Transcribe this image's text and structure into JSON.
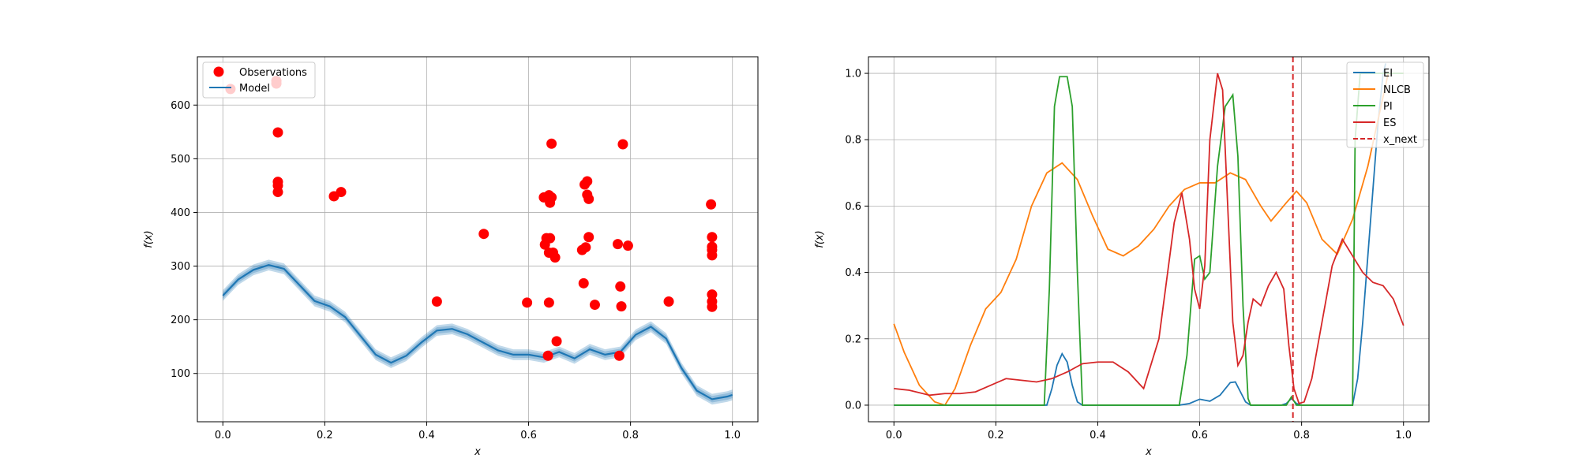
{
  "chart_data": [
    {
      "type": "scatter",
      "xlabel": "x",
      "ylabel": "f(x)",
      "xlim": [
        -0.05,
        1.05
      ],
      "ylim": [
        10,
        690
      ],
      "xticks": [
        "0.0",
        "0.2",
        "0.4",
        "0.6",
        "0.8",
        "1.0"
      ],
      "yticks": [
        "100",
        "200",
        "300",
        "400",
        "500",
        "600"
      ],
      "grid": true,
      "legend": "top-left",
      "legend_labels": {
        "observations": "Observations",
        "model": "Model"
      },
      "colors": {
        "observations": "#ff0000",
        "model": "#1f77b4",
        "band": "#1f77b4"
      },
      "series": [
        {
          "name": "Observations",
          "kind": "scatter",
          "points": [
            [
              0.015,
              630
            ],
            [
              0.105,
              645
            ],
            [
              0.105,
              640
            ],
            [
              0.108,
              549
            ],
            [
              0.108,
              457
            ],
            [
              0.108,
              450
            ],
            [
              0.108,
              438
            ],
            [
              0.218,
              430
            ],
            [
              0.232,
              438
            ],
            [
              0.42,
              234
            ],
            [
              0.512,
              360
            ],
            [
              0.597,
              232
            ],
            [
              0.63,
              428
            ],
            [
              0.635,
              352
            ],
            [
              0.632,
              340
            ],
            [
              0.638,
              133
            ],
            [
              0.642,
              352
            ],
            [
              0.64,
              432
            ],
            [
              0.642,
              418
            ],
            [
              0.645,
              428
            ],
            [
              0.645,
              528
            ],
            [
              0.64,
              325
            ],
            [
              0.64,
              232
            ],
            [
              0.648,
              325
            ],
            [
              0.652,
              316
            ],
            [
              0.655,
              160
            ],
            [
              0.705,
              330
            ],
            [
              0.708,
              268
            ],
            [
              0.71,
              452
            ],
            [
              0.712,
              335
            ],
            [
              0.715,
              458
            ],
            [
              0.715,
              433
            ],
            [
              0.718,
              425
            ],
            [
              0.718,
              354
            ],
            [
              0.73,
              228
            ],
            [
              0.775,
              341
            ],
            [
              0.778,
              133
            ],
            [
              0.78,
              262
            ],
            [
              0.782,
              225
            ],
            [
              0.785,
              527
            ],
            [
              0.795,
              338
            ],
            [
              0.875,
              234
            ],
            [
              0.958,
              415
            ],
            [
              0.96,
              354
            ],
            [
              0.96,
              336
            ],
            [
              0.96,
              330
            ],
            [
              0.96,
              320
            ],
            [
              0.96,
              247
            ],
            [
              0.96,
              234
            ],
            [
              0.96,
              224
            ]
          ]
        },
        {
          "name": "Model",
          "kind": "line",
          "x": [
            0.0,
            0.03,
            0.06,
            0.09,
            0.12,
            0.15,
            0.18,
            0.21,
            0.24,
            0.27,
            0.3,
            0.33,
            0.36,
            0.39,
            0.42,
            0.45,
            0.48,
            0.51,
            0.54,
            0.57,
            0.6,
            0.63,
            0.66,
            0.69,
            0.72,
            0.75,
            0.78,
            0.81,
            0.84,
            0.87,
            0.9,
            0.93,
            0.96,
            0.99,
            1.0
          ],
          "y": [
            245,
            275,
            293,
            302,
            295,
            265,
            235,
            225,
            205,
            170,
            135,
            120,
            133,
            158,
            180,
            183,
            173,
            158,
            143,
            135,
            135,
            130,
            140,
            128,
            145,
            135,
            140,
            172,
            187,
            165,
            110,
            68,
            52,
            57,
            60
          ],
          "band": [
            10,
            10,
            10,
            10,
            10,
            10,
            10,
            10,
            10,
            10,
            10,
            10,
            10,
            10,
            10,
            10,
            10,
            10,
            10,
            10,
            10,
            10,
            10,
            10,
            10,
            10,
            10,
            10,
            10,
            10,
            10,
            10,
            10,
            10,
            10
          ]
        }
      ]
    },
    {
      "type": "line",
      "xlabel": "x",
      "ylabel": "f(x)",
      "xlim": [
        -0.05,
        1.05
      ],
      "ylim": [
        -0.05,
        1.05
      ],
      "xticks": [
        "0.0",
        "0.2",
        "0.4",
        "0.6",
        "0.8",
        "1.0"
      ],
      "yticks": [
        "0.0",
        "0.2",
        "0.4",
        "0.6",
        "0.8",
        "1.0"
      ],
      "grid": true,
      "legend": "top-right",
      "x_next": 0.783,
      "series": [
        {
          "name": "EI",
          "color": "#1f77b4",
          "x": [
            0.0,
            0.3,
            0.31,
            0.32,
            0.33,
            0.34,
            0.35,
            0.36,
            0.37,
            0.56,
            0.58,
            0.6,
            0.62,
            0.64,
            0.66,
            0.67,
            0.68,
            0.69,
            0.7,
            0.76,
            0.77,
            0.78,
            0.79,
            0.8,
            0.9,
            0.91,
            0.92,
            0.93,
            0.94,
            0.95,
            0.96,
            0.965
          ],
          "y": [
            0.0,
            0.0,
            0.05,
            0.12,
            0.155,
            0.13,
            0.06,
            0.01,
            0.0,
            0.0,
            0.005,
            0.018,
            0.012,
            0.03,
            0.068,
            0.07,
            0.04,
            0.01,
            0.0,
            0.0,
            0.005,
            0.02,
            0.005,
            0.0,
            0.0,
            0.08,
            0.25,
            0.45,
            0.65,
            0.85,
            1.0,
            1.03
          ]
        },
        {
          "name": "NLCB",
          "color": "#ff7f0e",
          "x": [
            0.0,
            0.02,
            0.05,
            0.08,
            0.1,
            0.12,
            0.15,
            0.18,
            0.21,
            0.24,
            0.27,
            0.3,
            0.33,
            0.36,
            0.39,
            0.42,
            0.45,
            0.48,
            0.51,
            0.54,
            0.57,
            0.6,
            0.63,
            0.66,
            0.69,
            0.72,
            0.74,
            0.77,
            0.79,
            0.81,
            0.84,
            0.87,
            0.9,
            0.93,
            0.95,
            0.97,
            1.0
          ],
          "y": [
            0.245,
            0.16,
            0.06,
            0.01,
            0.0,
            0.05,
            0.18,
            0.29,
            0.34,
            0.44,
            0.6,
            0.7,
            0.73,
            0.68,
            0.57,
            0.47,
            0.45,
            0.48,
            0.53,
            0.6,
            0.65,
            0.67,
            0.67,
            0.7,
            0.68,
            0.6,
            0.555,
            0.61,
            0.645,
            0.61,
            0.5,
            0.455,
            0.56,
            0.72,
            0.86,
            1.0,
            1.0
          ]
        },
        {
          "name": "PI",
          "color": "#2ca02c",
          "x": [
            0.0,
            0.295,
            0.305,
            0.315,
            0.325,
            0.34,
            0.35,
            0.36,
            0.37,
            0.56,
            0.575,
            0.59,
            0.6,
            0.61,
            0.62,
            0.635,
            0.65,
            0.665,
            0.675,
            0.685,
            0.695,
            0.7,
            0.77,
            0.78,
            0.79,
            0.9,
            0.905,
            0.915,
            1.0
          ],
          "y": [
            0.0,
            0.0,
            0.35,
            0.9,
            0.99,
            0.99,
            0.9,
            0.4,
            0.0,
            0.0,
            0.15,
            0.44,
            0.45,
            0.38,
            0.4,
            0.72,
            0.9,
            0.935,
            0.75,
            0.3,
            0.02,
            0.0,
            0.0,
            0.025,
            0.0,
            0.0,
            0.8,
            1.0,
            1.0
          ]
        },
        {
          "name": "ES",
          "color": "#d62728",
          "x": [
            0.0,
            0.03,
            0.07,
            0.1,
            0.13,
            0.16,
            0.19,
            0.22,
            0.25,
            0.28,
            0.31,
            0.34,
            0.37,
            0.4,
            0.43,
            0.46,
            0.49,
            0.52,
            0.55,
            0.565,
            0.58,
            0.59,
            0.6,
            0.61,
            0.62,
            0.635,
            0.645,
            0.655,
            0.665,
            0.675,
            0.685,
            0.695,
            0.705,
            0.72,
            0.735,
            0.75,
            0.765,
            0.775,
            0.785,
            0.795,
            0.805,
            0.82,
            0.84,
            0.86,
            0.88,
            0.9,
            0.92,
            0.94,
            0.96,
            0.98,
            1.0
          ],
          "y": [
            0.05,
            0.045,
            0.03,
            0.035,
            0.035,
            0.04,
            0.06,
            0.08,
            0.075,
            0.07,
            0.08,
            0.1,
            0.125,
            0.13,
            0.13,
            0.1,
            0.05,
            0.2,
            0.55,
            0.64,
            0.5,
            0.35,
            0.29,
            0.42,
            0.8,
            1.0,
            0.95,
            0.6,
            0.25,
            0.12,
            0.15,
            0.25,
            0.32,
            0.3,
            0.36,
            0.4,
            0.35,
            0.18,
            0.05,
            0.005,
            0.01,
            0.08,
            0.25,
            0.42,
            0.5,
            0.45,
            0.4,
            0.37,
            0.36,
            0.32,
            0.24
          ]
        }
      ],
      "legend_labels": [
        "EI",
        "NLCB",
        "PI",
        "ES",
        "x_next"
      ],
      "colors": {
        "x_next": "#d62728"
      }
    }
  ]
}
